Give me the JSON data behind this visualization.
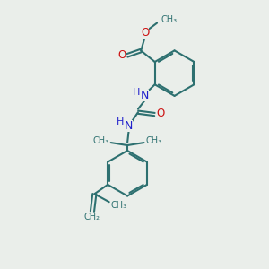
{
  "background_color": "#eaeeea",
  "bond_color": "#2d7070",
  "n_color": "#2020cc",
  "o_color": "#cc1111",
  "lw": 1.5,
  "fig_size": [
    3.0,
    3.0
  ],
  "dpi": 100,
  "xlim": [
    0,
    10
  ],
  "ylim": [
    0,
    10
  ]
}
